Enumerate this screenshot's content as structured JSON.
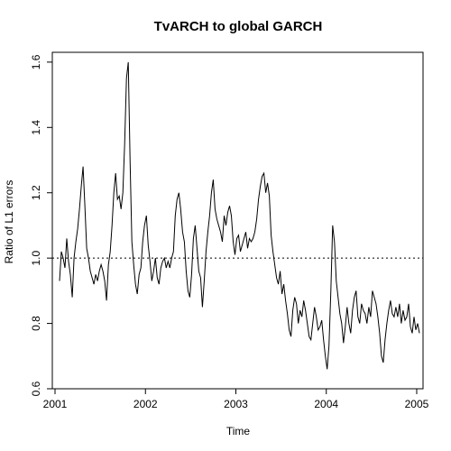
{
  "chart_data": {
    "type": "line",
    "title": "TvARCH to global GARCH",
    "xlabel": "Time",
    "ylabel": "Ratio of L1 errors",
    "xlim": [
      2000.97,
      2005.07
    ],
    "ylim": [
      0.6,
      1.63
    ],
    "xticks": [
      2001,
      2002,
      2003,
      2004,
      2005
    ],
    "xtick_labels": [
      "2001",
      "2002",
      "2003",
      "2004",
      "2005"
    ],
    "yticks": [
      0.6,
      0.8,
      1.0,
      1.2,
      1.4,
      1.6
    ],
    "ytick_labels": [
      "0.6",
      "0.8",
      "1.0",
      "1.2",
      "1.4",
      "1.6"
    ],
    "reference_line": {
      "y": 1.0,
      "style": "dotted"
    },
    "grid": false,
    "series": [
      {
        "x": [
          2001.05,
          2001.07,
          2001.09,
          2001.11,
          2001.13,
          2001.15,
          2001.17,
          2001.19,
          2001.21,
          2001.23,
          2001.25,
          2001.27,
          2001.29,
          2001.31,
          2001.33,
          2001.35,
          2001.37,
          2001.39,
          2001.41,
          2001.43,
          2001.45,
          2001.47,
          2001.49,
          2001.51,
          2001.53,
          2001.55,
          2001.57,
          2001.59,
          2001.61,
          2001.63,
          2001.65,
          2001.67,
          2001.69,
          2001.71,
          2001.73,
          2001.75,
          2001.77,
          2001.79,
          2001.81,
          2001.83,
          2001.85,
          2001.87,
          2001.89,
          2001.91,
          2001.93,
          2001.95,
          2001.97,
          2001.99,
          2002.01,
          2002.03,
          2002.05,
          2002.07,
          2002.09,
          2002.11,
          2002.13,
          2002.15,
          2002.17,
          2002.19,
          2002.21,
          2002.23,
          2002.25,
          2002.27,
          2002.29,
          2002.31,
          2002.33,
          2002.35,
          2002.37,
          2002.39,
          2002.41,
          2002.43,
          2002.45,
          2002.47,
          2002.49,
          2002.51,
          2002.53,
          2002.55,
          2002.57,
          2002.59,
          2002.61,
          2002.63,
          2002.65,
          2002.67,
          2002.69,
          2002.71,
          2002.73,
          2002.75,
          2002.77,
          2002.79,
          2002.81,
          2002.83,
          2002.85,
          2002.87,
          2002.89,
          2002.91,
          2002.93,
          2002.95,
          2002.97,
          2002.99,
          2003.01,
          2003.03,
          2003.05,
          2003.07,
          2003.09,
          2003.11,
          2003.13,
          2003.15,
          2003.17,
          2003.19,
          2003.21,
          2003.23,
          2003.25,
          2003.27,
          2003.29,
          2003.31,
          2003.33,
          2003.35,
          2003.37,
          2003.39,
          2003.41,
          2003.43,
          2003.45,
          2003.47,
          2003.49,
          2003.51,
          2003.53,
          2003.55,
          2003.57,
          2003.59,
          2003.61,
          2003.63,
          2003.65,
          2003.67,
          2003.69,
          2003.71,
          2003.73,
          2003.75,
          2003.77,
          2003.79,
          2003.81,
          2003.83,
          2003.85,
          2003.87,
          2003.89,
          2003.91,
          2003.93,
          2003.95,
          2003.97,
          2003.99,
          2004.01,
          2004.03,
          2004.05,
          2004.07,
          2004.09,
          2004.11,
          2004.13,
          2004.15,
          2004.17,
          2004.19,
          2004.21,
          2004.23,
          2004.25,
          2004.27,
          2004.29,
          2004.31,
          2004.33,
          2004.35,
          2004.37,
          2004.39,
          2004.41,
          2004.43,
          2004.45,
          2004.47,
          2004.49,
          2004.51,
          2004.53,
          2004.55,
          2004.57,
          2004.59,
          2004.61,
          2004.63,
          2004.65,
          2004.67,
          2004.69,
          2004.71,
          2004.73,
          2004.75,
          2004.77,
          2004.79,
          2004.81,
          2004.83,
          2004.85,
          2004.87,
          2004.89,
          2004.91,
          2004.93,
          2004.95,
          2004.97,
          2004.99,
          2005.01,
          2005.03
        ],
        "y": [
          0.93,
          1.02,
          1.0,
          0.97,
          1.06,
          0.99,
          0.95,
          0.88,
          1.0,
          1.05,
          1.09,
          1.15,
          1.22,
          1.28,
          1.16,
          1.03,
          1.0,
          0.96,
          0.94,
          0.92,
          0.95,
          0.93,
          0.96,
          0.98,
          0.96,
          0.93,
          0.87,
          0.98,
          1.02,
          1.1,
          1.2,
          1.26,
          1.18,
          1.19,
          1.15,
          1.2,
          1.35,
          1.55,
          1.6,
          1.3,
          1.05,
          0.98,
          0.92,
          0.89,
          0.95,
          0.97,
          1.05,
          1.1,
          1.13,
          1.04,
          0.99,
          0.93,
          0.96,
          1.0,
          0.94,
          0.92,
          0.97,
          0.99,
          1.0,
          0.97,
          0.99,
          0.97,
          1.0,
          1.02,
          1.13,
          1.18,
          1.2,
          1.15,
          1.08,
          1.05,
          0.96,
          0.9,
          0.88,
          0.95,
          1.06,
          1.1,
          1.03,
          0.96,
          0.94,
          0.85,
          0.93,
          1.02,
          1.08,
          1.13,
          1.2,
          1.24,
          1.15,
          1.12,
          1.1,
          1.08,
          1.05,
          1.13,
          1.1,
          1.14,
          1.16,
          1.13,
          1.05,
          1.01,
          1.06,
          1.07,
          1.02,
          1.04,
          1.06,
          1.08,
          1.03,
          1.06,
          1.05,
          1.06,
          1.08,
          1.12,
          1.18,
          1.22,
          1.25,
          1.26,
          1.2,
          1.23,
          1.19,
          1.07,
          1.02,
          0.98,
          0.94,
          0.92,
          0.96,
          0.89,
          0.92,
          0.87,
          0.83,
          0.78,
          0.76,
          0.84,
          0.88,
          0.86,
          0.8,
          0.84,
          0.82,
          0.87,
          0.84,
          0.8,
          0.76,
          0.75,
          0.8,
          0.85,
          0.82,
          0.78,
          0.79,
          0.81,
          0.75,
          0.7,
          0.66,
          0.73,
          0.9,
          1.1,
          1.05,
          0.93,
          0.88,
          0.83,
          0.8,
          0.74,
          0.79,
          0.85,
          0.8,
          0.77,
          0.84,
          0.88,
          0.9,
          0.82,
          0.8,
          0.86,
          0.84,
          0.83,
          0.8,
          0.85,
          0.82,
          0.9,
          0.88,
          0.86,
          0.82,
          0.77,
          0.7,
          0.68,
          0.75,
          0.8,
          0.84,
          0.87,
          0.83,
          0.82,
          0.85,
          0.82,
          0.86,
          0.8,
          0.84,
          0.81,
          0.82,
          0.86,
          0.79,
          0.77,
          0.82,
          0.78,
          0.8,
          0.77
        ]
      }
    ]
  }
}
